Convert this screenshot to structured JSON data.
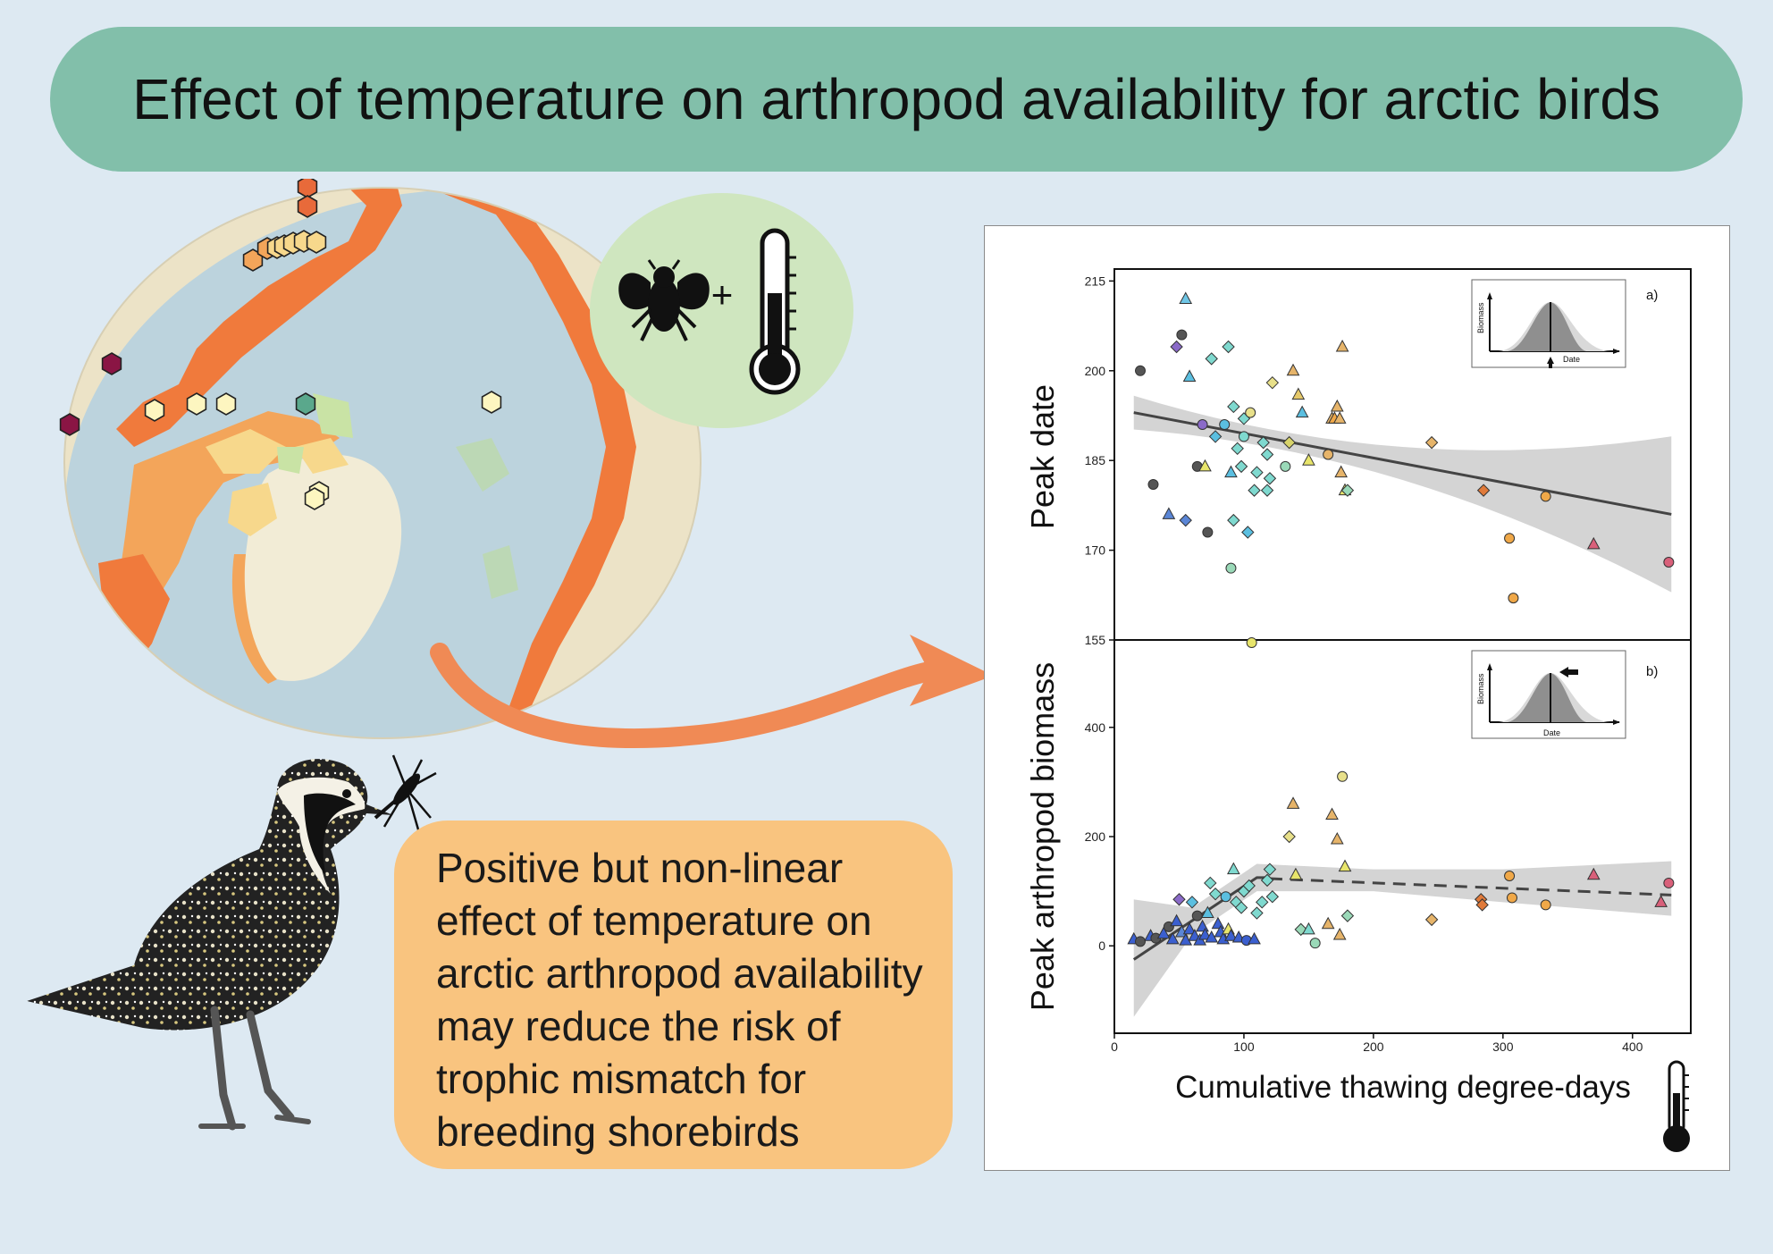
{
  "title": "Effect of temperature on arthropod availability for arctic birds",
  "plus_sign": "+",
  "callout_text": "Positive but non-linear effect of temperature on arctic arthropod availability may reduce the risk of trophic mismatch for breeding shorebirds",
  "icons": [
    "fly-icon",
    "thermometer-icon",
    "bird-icon",
    "mosquito-icon"
  ],
  "colors": {
    "banner": "#82bfaa",
    "callout": "#f9c47f",
    "arrow": "#f08a55",
    "icon_circle": "#cfe6bf"
  },
  "chart_data": [
    {
      "type": "scatter",
      "panel_label": "a)",
      "ylabel": "Peak date",
      "xlabel": "Cumulative thawing degree-days",
      "xlim": [
        0,
        445
      ],
      "ylim": [
        155,
        217
      ],
      "x_ticks": [
        0,
        100,
        200,
        300,
        400
      ],
      "y_ticks": [
        155,
        170,
        185,
        200,
        215
      ],
      "trend": {
        "x": [
          15,
          430
        ],
        "y": [
          193,
          176
        ]
      },
      "points": [
        {
          "x": 20,
          "y": 200,
          "shape": "circle",
          "color": "#555555"
        },
        {
          "x": 30,
          "y": 181,
          "shape": "circle",
          "color": "#555555"
        },
        {
          "x": 42,
          "y": 176,
          "shape": "triangle",
          "color": "#5b86d6"
        },
        {
          "x": 52,
          "y": 206,
          "shape": "circle",
          "color": "#555555"
        },
        {
          "x": 48,
          "y": 204,
          "shape": "diamond",
          "color": "#8a6ac8"
        },
        {
          "x": 55,
          "y": 212,
          "shape": "triangle",
          "color": "#6fc6e6"
        },
        {
          "x": 55,
          "y": 175,
          "shape": "diamond",
          "color": "#5b86d6"
        },
        {
          "x": 58,
          "y": 199,
          "shape": "triangle",
          "color": "#5bbfe0"
        },
        {
          "x": 64,
          "y": 184,
          "shape": "circle",
          "color": "#555555"
        },
        {
          "x": 68,
          "y": 191,
          "shape": "circle",
          "color": "#8a6ac8"
        },
        {
          "x": 70,
          "y": 184,
          "shape": "triangle",
          "color": "#e8e56b"
        },
        {
          "x": 72,
          "y": 173,
          "shape": "circle",
          "color": "#555555"
        },
        {
          "x": 75,
          "y": 202,
          "shape": "diamond",
          "color": "#7fd9cf"
        },
        {
          "x": 78,
          "y": 189,
          "shape": "diamond",
          "color": "#5bbfe0"
        },
        {
          "x": 85,
          "y": 191,
          "shape": "circle",
          "color": "#5bbfe0"
        },
        {
          "x": 88,
          "y": 204,
          "shape": "diamond",
          "color": "#7fd9cf"
        },
        {
          "x": 90,
          "y": 183,
          "shape": "triangle",
          "color": "#5bbfe0"
        },
        {
          "x": 90,
          "y": 167,
          "shape": "circle",
          "color": "#9ad9b8"
        },
        {
          "x": 92,
          "y": 194,
          "shape": "diamond",
          "color": "#7fd9cf"
        },
        {
          "x": 92,
          "y": 175,
          "shape": "diamond",
          "color": "#7fd9cf"
        },
        {
          "x": 95,
          "y": 187,
          "shape": "diamond",
          "color": "#7fd9cf"
        },
        {
          "x": 98,
          "y": 184,
          "shape": "diamond",
          "color": "#7fd9cf"
        },
        {
          "x": 100,
          "y": 189,
          "shape": "circle",
          "color": "#7fd9cf"
        },
        {
          "x": 100,
          "y": 192,
          "shape": "diamond",
          "color": "#7fd9cf"
        },
        {
          "x": 103,
          "y": 173,
          "shape": "diamond",
          "color": "#5bbfe0"
        },
        {
          "x": 105,
          "y": 193,
          "shape": "circle",
          "color": "#e8e08a"
        },
        {
          "x": 108,
          "y": 180,
          "shape": "diamond",
          "color": "#7fd9cf"
        },
        {
          "x": 110,
          "y": 183,
          "shape": "diamond",
          "color": "#7fd9cf"
        },
        {
          "x": 115,
          "y": 188,
          "shape": "diamond",
          "color": "#7fd9cf"
        },
        {
          "x": 118,
          "y": 180,
          "shape": "diamond",
          "color": "#7fd9cf"
        },
        {
          "x": 118,
          "y": 186,
          "shape": "diamond",
          "color": "#7fd9cf"
        },
        {
          "x": 120,
          "y": 182,
          "shape": "diamond",
          "color": "#7fd9cf"
        },
        {
          "x": 122,
          "y": 198,
          "shape": "diamond",
          "color": "#e8e08a"
        },
        {
          "x": 132,
          "y": 184,
          "shape": "circle",
          "color": "#9ad9b8"
        },
        {
          "x": 135,
          "y": 188,
          "shape": "diamond",
          "color": "#d7d36a"
        },
        {
          "x": 138,
          "y": 200,
          "shape": "triangle",
          "color": "#e6b46a"
        },
        {
          "x": 142,
          "y": 196,
          "shape": "triangle",
          "color": "#e6c96a"
        },
        {
          "x": 145,
          "y": 193,
          "shape": "triangle",
          "color": "#5bbfe0"
        },
        {
          "x": 150,
          "y": 185,
          "shape": "triangle",
          "color": "#e8e56b"
        },
        {
          "x": 165,
          "y": 186,
          "shape": "circle",
          "color": "#e6b46a"
        },
        {
          "x": 168,
          "y": 192,
          "shape": "triangle",
          "color": "#e6b46a"
        },
        {
          "x": 170,
          "y": 192,
          "shape": "triangle",
          "color": "#f0a848"
        },
        {
          "x": 172,
          "y": 194,
          "shape": "triangle",
          "color": "#e6b46a"
        },
        {
          "x": 174,
          "y": 192,
          "shape": "triangle",
          "color": "#e6b46a"
        },
        {
          "x": 175,
          "y": 183,
          "shape": "triangle",
          "color": "#e6b46a"
        },
        {
          "x": 176,
          "y": 204,
          "shape": "triangle",
          "color": "#e6b46a"
        },
        {
          "x": 178,
          "y": 180,
          "shape": "triangle",
          "color": "#e8e56b"
        },
        {
          "x": 180,
          "y": 180,
          "shape": "diamond",
          "color": "#9ad9b8"
        },
        {
          "x": 245,
          "y": 188,
          "shape": "diamond",
          "color": "#e6b46a"
        },
        {
          "x": 285,
          "y": 180,
          "shape": "diamond",
          "color": "#e07a3a"
        },
        {
          "x": 305,
          "y": 172,
          "shape": "circle",
          "color": "#f0a848"
        },
        {
          "x": 308,
          "y": 162,
          "shape": "circle",
          "color": "#f0a848"
        },
        {
          "x": 333,
          "y": 179,
          "shape": "circle",
          "color": "#f0a848"
        },
        {
          "x": 370,
          "y": 171,
          "shape": "triangle",
          "color": "#d9607a"
        },
        {
          "x": 428,
          "y": 168,
          "shape": "circle",
          "color": "#d9607a"
        }
      ]
    },
    {
      "type": "scatter",
      "panel_label": "b)",
      "ylabel": "Peak arthropod biomass",
      "xlabel": "Cumulative thawing degree-days",
      "xlim": [
        0,
        445
      ],
      "ylim": [
        -160,
        560
      ],
      "x_ticks": [
        0,
        100,
        200,
        300,
        400
      ],
      "y_ticks": [
        0,
        200,
        400
      ],
      "x_tick_labels": [
        "0",
        "100",
        "200",
        "300",
        "400"
      ],
      "y_tick_labels": [
        "0",
        "200",
        "400"
      ],
      "fit_solid": {
        "x": [
          15,
          110,
          120
        ],
        "y": [
          -25,
          125,
          125
        ]
      },
      "fit_dashed": {
        "x": [
          120,
          430
        ],
        "y": [
          123,
          93
        ]
      },
      "points": [
        {
          "x": 15,
          "y": 12,
          "shape": "triangle",
          "color": "#3b5fcf"
        },
        {
          "x": 20,
          "y": 8,
          "shape": "circle",
          "color": "#555555"
        },
        {
          "x": 28,
          "y": 18,
          "shape": "triangle",
          "color": "#3b5fcf"
        },
        {
          "x": 32,
          "y": 14,
          "shape": "circle",
          "color": "#555555"
        },
        {
          "x": 38,
          "y": 22,
          "shape": "triangle",
          "color": "#3b5fcf"
        },
        {
          "x": 42,
          "y": 35,
          "shape": "circle",
          "color": "#555555"
        },
        {
          "x": 45,
          "y": 12,
          "shape": "triangle",
          "color": "#3b5fcf"
        },
        {
          "x": 48,
          "y": 45,
          "shape": "triangle",
          "color": "#3b5fcf"
        },
        {
          "x": 50,
          "y": 85,
          "shape": "diamond",
          "color": "#8a6ac8"
        },
        {
          "x": 52,
          "y": 25,
          "shape": "triangle",
          "color": "#5b86d6"
        },
        {
          "x": 55,
          "y": 10,
          "shape": "triangle",
          "color": "#3b5fcf"
        },
        {
          "x": 58,
          "y": 30,
          "shape": "triangle",
          "color": "#3b5fcf"
        },
        {
          "x": 60,
          "y": 80,
          "shape": "diamond",
          "color": "#5bbfe0"
        },
        {
          "x": 62,
          "y": 18,
          "shape": "triangle",
          "color": "#3b5fcf"
        },
        {
          "x": 64,
          "y": 55,
          "shape": "circle",
          "color": "#555555"
        },
        {
          "x": 66,
          "y": 10,
          "shape": "triangle",
          "color": "#3b5fcf"
        },
        {
          "x": 68,
          "y": 35,
          "shape": "triangle",
          "color": "#3b5fcf"
        },
        {
          "x": 70,
          "y": 20,
          "shape": "triangle",
          "color": "#3b5fcf"
        },
        {
          "x": 72,
          "y": 60,
          "shape": "triangle",
          "color": "#5bbfe0"
        },
        {
          "x": 74,
          "y": 115,
          "shape": "diamond",
          "color": "#7fd9cf"
        },
        {
          "x": 75,
          "y": 15,
          "shape": "triangle",
          "color": "#3b5fcf"
        },
        {
          "x": 78,
          "y": 95,
          "shape": "diamond",
          "color": "#7fd9cf"
        },
        {
          "x": 80,
          "y": 40,
          "shape": "triangle",
          "color": "#3b5fcf"
        },
        {
          "x": 82,
          "y": 25,
          "shape": "triangle",
          "color": "#3b5fcf"
        },
        {
          "x": 84,
          "y": 12,
          "shape": "triangle",
          "color": "#3b5fcf"
        },
        {
          "x": 86,
          "y": 90,
          "shape": "circle",
          "color": "#5bbfe0"
        },
        {
          "x": 88,
          "y": 30,
          "shape": "triangle",
          "color": "#e8e56b"
        },
        {
          "x": 90,
          "y": 18,
          "shape": "triangle",
          "color": "#3b5fcf"
        },
        {
          "x": 92,
          "y": 140,
          "shape": "triangle",
          "color": "#7fd9cf"
        },
        {
          "x": 94,
          "y": 80,
          "shape": "diamond",
          "color": "#7fd9cf"
        },
        {
          "x": 96,
          "y": 15,
          "shape": "triangle",
          "color": "#3b5fcf"
        },
        {
          "x": 98,
          "y": 70,
          "shape": "diamond",
          "color": "#7fd9cf"
        },
        {
          "x": 100,
          "y": 100,
          "shape": "diamond",
          "color": "#7fd9cf"
        },
        {
          "x": 102,
          "y": 10,
          "shape": "circle",
          "color": "#3b5fcf"
        },
        {
          "x": 104,
          "y": 110,
          "shape": "diamond",
          "color": "#7fd9cf"
        },
        {
          "x": 106,
          "y": 555,
          "shape": "circle",
          "color": "#e8e56b"
        },
        {
          "x": 108,
          "y": 12,
          "shape": "triangle",
          "color": "#3b5fcf"
        },
        {
          "x": 110,
          "y": 60,
          "shape": "diamond",
          "color": "#7fd9cf"
        },
        {
          "x": 114,
          "y": 80,
          "shape": "diamond",
          "color": "#7fd9cf"
        },
        {
          "x": 118,
          "y": 120,
          "shape": "diamond",
          "color": "#7fd9cf"
        },
        {
          "x": 120,
          "y": 140,
          "shape": "diamond",
          "color": "#7fd9cf"
        },
        {
          "x": 122,
          "y": 90,
          "shape": "diamond",
          "color": "#7fd9cf"
        },
        {
          "x": 135,
          "y": 200,
          "shape": "diamond",
          "color": "#e8e08a"
        },
        {
          "x": 138,
          "y": 260,
          "shape": "triangle",
          "color": "#e6b46a"
        },
        {
          "x": 140,
          "y": 130,
          "shape": "triangle",
          "color": "#e8e56b"
        },
        {
          "x": 144,
          "y": 30,
          "shape": "diamond",
          "color": "#9ad9b8"
        },
        {
          "x": 150,
          "y": 30,
          "shape": "triangle",
          "color": "#7fd9cf"
        },
        {
          "x": 155,
          "y": 5,
          "shape": "circle",
          "color": "#9ad9b8"
        },
        {
          "x": 165,
          "y": 40,
          "shape": "triangle",
          "color": "#e6b46a"
        },
        {
          "x": 168,
          "y": 240,
          "shape": "triangle",
          "color": "#e6b46a"
        },
        {
          "x": 172,
          "y": 195,
          "shape": "triangle",
          "color": "#e6b46a"
        },
        {
          "x": 174,
          "y": 20,
          "shape": "triangle",
          "color": "#e6b46a"
        },
        {
          "x": 176,
          "y": 310,
          "shape": "circle",
          "color": "#e8e08a"
        },
        {
          "x": 178,
          "y": 145,
          "shape": "triangle",
          "color": "#e8e56b"
        },
        {
          "x": 180,
          "y": 55,
          "shape": "diamond",
          "color": "#9ad9b8"
        },
        {
          "x": 245,
          "y": 48,
          "shape": "diamond",
          "color": "#e6b46a"
        },
        {
          "x": 283,
          "y": 85,
          "shape": "diamond",
          "color": "#e07a3a"
        },
        {
          "x": 284,
          "y": 75,
          "shape": "diamond",
          "color": "#e07a3a"
        },
        {
          "x": 305,
          "y": 128,
          "shape": "circle",
          "color": "#f0a848"
        },
        {
          "x": 307,
          "y": 88,
          "shape": "circle",
          "color": "#f0a848"
        },
        {
          "x": 333,
          "y": 75,
          "shape": "circle",
          "color": "#f0a848"
        },
        {
          "x": 370,
          "y": 130,
          "shape": "triangle",
          "color": "#d9607a"
        },
        {
          "x": 422,
          "y": 80,
          "shape": "triangle",
          "color": "#d9607a"
        },
        {
          "x": 428,
          "y": 115,
          "shape": "circle",
          "color": "#d9607a"
        }
      ]
    }
  ],
  "inset_a": {
    "ylabel": "Biomass",
    "xlabel": "Date"
  },
  "inset_b": {
    "ylabel": "Biomass",
    "xlabel": "Date"
  }
}
